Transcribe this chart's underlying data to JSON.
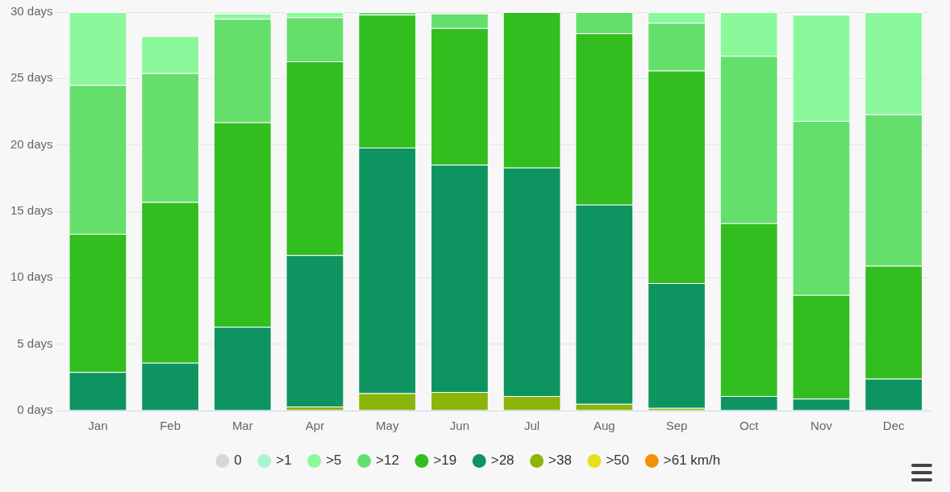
{
  "chart_data": {
    "type": "bar",
    "stacked": true,
    "categories": [
      "Jan",
      "Feb",
      "Mar",
      "Apr",
      "May",
      "Jun",
      "Jul",
      "Aug",
      "Sep",
      "Oct",
      "Nov",
      "Dec"
    ],
    "ylim": [
      0,
      30
    ],
    "yticks": [
      {
        "value": 0,
        "label": "0 days"
      },
      {
        "value": 5,
        "label": "5 days"
      },
      {
        "value": 10,
        "label": "10 days"
      },
      {
        "value": 15,
        "label": "15 days"
      },
      {
        "value": 20,
        "label": "20 days"
      },
      {
        "value": 25,
        "label": "25 days"
      },
      {
        "value": 30,
        "label": "30 days"
      }
    ],
    "grid": "y",
    "legend": "bottom",
    "series": [
      {
        "name": ">61 km/h",
        "color": "#f39009",
        "values": [
          0,
          0,
          0,
          0,
          0,
          0,
          0,
          0,
          0,
          0,
          0,
          0
        ]
      },
      {
        "name": ">50",
        "color": "#e6e01c",
        "values": [
          0,
          0,
          0,
          0,
          0,
          0,
          0,
          0,
          0,
          0,
          0,
          0
        ]
      },
      {
        "name": ">38",
        "color": "#8bb50a",
        "values": [
          0,
          0,
          0,
          0.3,
          1.3,
          1.4,
          1.1,
          0.5,
          0.2,
          0,
          0,
          0
        ]
      },
      {
        "name": ">28",
        "color": "#0e9460",
        "values": [
          2.9,
          3.6,
          6.3,
          11.4,
          18.5,
          17.1,
          17.2,
          15.0,
          9.4,
          1.1,
          0.9,
          2.4
        ]
      },
      {
        "name": ">19",
        "color": "#32be1e",
        "values": [
          10.4,
          12.1,
          15.4,
          14.6,
          10.0,
          10.3,
          11.7,
          12.9,
          16.0,
          13.0,
          7.8,
          8.5
        ]
      },
      {
        "name": ">12",
        "color": "#65df6c",
        "values": [
          11.2,
          9.7,
          7.8,
          3.3,
          0.2,
          1.1,
          0,
          1.6,
          3.6,
          12.6,
          13.1,
          11.4
        ]
      },
      {
        "name": ">5",
        "color": "#8cf89c",
        "values": [
          5.5,
          2.8,
          0.4,
          0.4,
          0,
          0,
          0,
          0,
          0.8,
          3.3,
          8.0,
          7.7
        ]
      },
      {
        "name": ">1",
        "color": "#a8f6d0",
        "values": [
          0,
          0,
          0,
          0,
          0,
          0,
          0,
          0,
          0,
          0,
          0,
          0
        ]
      },
      {
        "name": "0",
        "color": "#ddd5d5",
        "values": [
          0,
          0,
          0,
          0,
          0,
          0,
          0,
          0,
          0,
          0,
          0,
          0
        ]
      }
    ]
  }
}
